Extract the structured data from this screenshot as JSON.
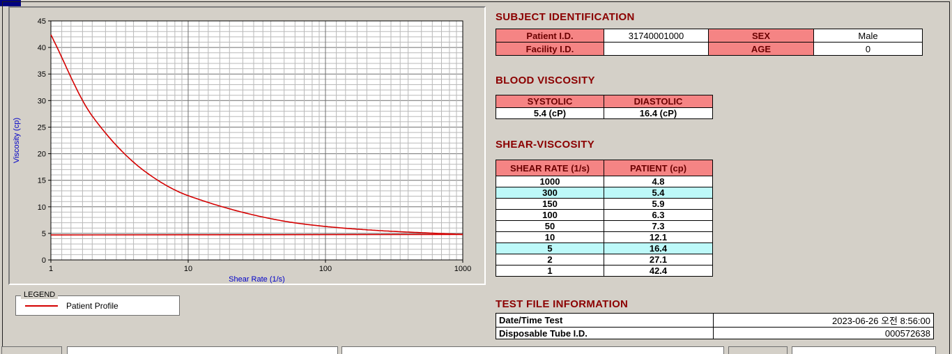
{
  "colors": {
    "header_pink": "#f58484",
    "highlight_cyan": "#bdf9f9",
    "heading_maroon": "#8b0000",
    "header_text": "#6b0000",
    "line_red": "#d40000",
    "axis_blue": "#0000c8",
    "window_bg": "#d4d0c8"
  },
  "chart_data": {
    "type": "line",
    "title": "",
    "xlabel": "Shear Rate (1/s)",
    "ylabel": "Viscosity (cp)",
    "x_scale": "log",
    "xlim": [
      1,
      1000
    ],
    "ylim": [
      0,
      45
    ],
    "x_ticks": [
      1,
      10,
      100,
      1000
    ],
    "y_ticks": [
      0,
      5,
      10,
      15,
      20,
      25,
      30,
      35,
      40,
      45
    ],
    "grid": true,
    "legend_position": "below-left",
    "series": [
      {
        "name": "Patient Profile",
        "color": "#d40000",
        "x": [
          1,
          2,
          5,
          10,
          50,
          100,
          150,
          300,
          1000
        ],
        "y": [
          42.4,
          27.1,
          16.4,
          12.1,
          7.3,
          6.3,
          5.9,
          5.4,
          4.8
        ]
      },
      {
        "name": "Patient Profile asymptote",
        "color": "#d40000",
        "x": [
          1,
          1000
        ],
        "y": [
          4.7,
          4.8
        ]
      }
    ]
  },
  "legend": {
    "title": "LEGEND",
    "entries": [
      {
        "label": "Patient Profile",
        "color": "#d40000"
      }
    ]
  },
  "subject_identification": {
    "heading": "SUBJECT IDENTIFICATION",
    "rows": [
      {
        "label1": "Patient I.D.",
        "value1": "31740001000",
        "label2": "SEX",
        "value2": "Male",
        "highlight": false
      },
      {
        "label1": "Facility I.D.",
        "value1": "",
        "label2": "AGE",
        "value2": "0",
        "highlight": false
      }
    ]
  },
  "blood_viscosity": {
    "heading": "BLOOD VISCOSITY",
    "columns": [
      "SYSTOLIC",
      "DIASTOLIC"
    ],
    "values": [
      "5.4 (cP)",
      "16.4 (cP)"
    ]
  },
  "shear_viscosity": {
    "heading": "SHEAR-VISCOSITY",
    "columns": [
      "SHEAR RATE (1/s)",
      "PATIENT (cp)"
    ],
    "rows": [
      {
        "shear_rate": "1000",
        "patient": "4.8",
        "highlight": false
      },
      {
        "shear_rate": "300",
        "patient": "5.4",
        "highlight": true
      },
      {
        "shear_rate": "150",
        "patient": "5.9",
        "highlight": false
      },
      {
        "shear_rate": "100",
        "patient": "6.3",
        "highlight": false
      },
      {
        "shear_rate": "50",
        "patient": "7.3",
        "highlight": false
      },
      {
        "shear_rate": "10",
        "patient": "12.1",
        "highlight": false
      },
      {
        "shear_rate": "5",
        "patient": "16.4",
        "highlight": true
      },
      {
        "shear_rate": "2",
        "patient": "27.1",
        "highlight": false
      },
      {
        "shear_rate": "1",
        "patient": "42.4",
        "highlight": false
      }
    ]
  },
  "test_file_information": {
    "heading": "TEST FILE INFORMATION",
    "rows": [
      {
        "label": "Date/Time Test",
        "value": "2023-06-26  오전 8:56:00"
      },
      {
        "label": "Disposable Tube I.D.",
        "value": "000572638"
      }
    ]
  }
}
